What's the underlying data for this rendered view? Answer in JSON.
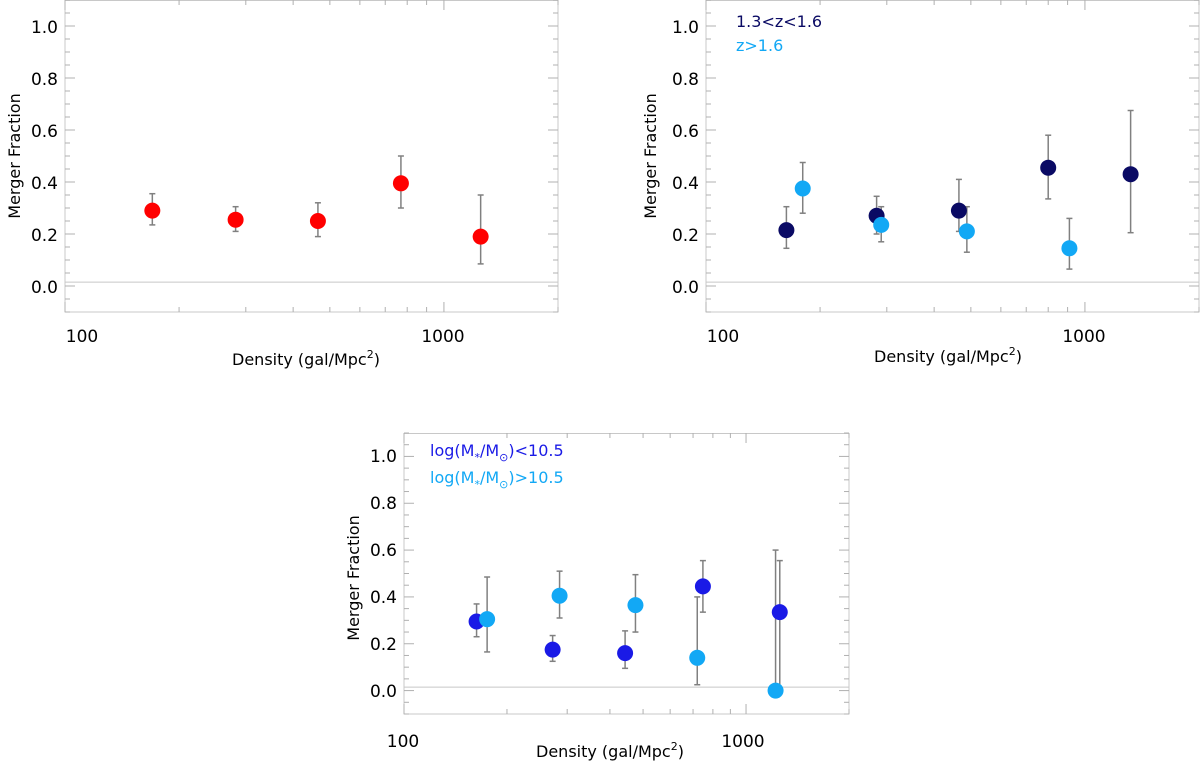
{
  "chart_data": [
    {
      "type": "scatter",
      "xscale": "log",
      "xlim": [
        100,
        2000
      ],
      "ylim": [
        -0.1,
        1.1
      ],
      "xticks": [
        "100",
        "1000"
      ],
      "yticks": [
        "0.0",
        "0.2",
        "0.4",
        "0.6",
        "0.8",
        "1.0"
      ],
      "xlabel": "Density (gal/Mpc",
      "xlabel_sup": "2",
      "xlabel_close": ")",
      "ylabel": "Merger Fraction",
      "reference_line": 0.015,
      "legend": [],
      "series": [
        {
          "name": "all",
          "color": "#ff0000",
          "points": [
            {
              "x": 170,
              "y": 0.29,
              "lo": 0.235,
              "hi": 0.355
            },
            {
              "x": 282,
              "y": 0.255,
              "lo": 0.21,
              "hi": 0.305
            },
            {
              "x": 465,
              "y": 0.25,
              "lo": 0.19,
              "hi": 0.32
            },
            {
              "x": 770,
              "y": 0.395,
              "lo": 0.3,
              "hi": 0.5
            },
            {
              "x": 1250,
              "y": 0.19,
              "lo": 0.085,
              "hi": 0.35
            }
          ]
        }
      ]
    },
    {
      "type": "scatter",
      "xscale": "log",
      "xlim": [
        100,
        2000
      ],
      "ylim": [
        -0.1,
        1.1
      ],
      "xticks": [
        "100",
        "1000"
      ],
      "yticks": [
        "0.0",
        "0.2",
        "0.4",
        "0.6",
        "0.8",
        "1.0"
      ],
      "xlabel": "Density (gal/Mpc",
      "xlabel_sup": "2",
      "xlabel_close": ")",
      "ylabel": "Merger Fraction",
      "reference_line": 0.015,
      "legend": [
        {
          "text": "1.3<z<1.6",
          "color": "#0a0a64"
        },
        {
          "text": "z>1.6",
          "color": "#12a8f5"
        }
      ],
      "series": [
        {
          "name": "1.3<z<1.6",
          "color": "#0a0a64",
          "points": [
            {
              "x": 163,
              "y": 0.215,
              "lo": 0.145,
              "hi": 0.305
            },
            {
              "x": 282,
              "y": 0.27,
              "lo": 0.2,
              "hi": 0.345
            },
            {
              "x": 465,
              "y": 0.29,
              "lo": 0.21,
              "hi": 0.41
            },
            {
              "x": 800,
              "y": 0.455,
              "lo": 0.335,
              "hi": 0.58
            },
            {
              "x": 1320,
              "y": 0.43,
              "lo": 0.205,
              "hi": 0.675
            }
          ]
        },
        {
          "name": "z>1.6",
          "color": "#12a8f5",
          "points": [
            {
              "x": 180,
              "y": 0.375,
              "lo": 0.28,
              "hi": 0.475
            },
            {
              "x": 290,
              "y": 0.235,
              "lo": 0.17,
              "hi": 0.305
            },
            {
              "x": 488,
              "y": 0.21,
              "lo": 0.13,
              "hi": 0.305
            },
            {
              "x": 910,
              "y": 0.145,
              "lo": 0.065,
              "hi": 0.26
            }
          ]
        }
      ]
    },
    {
      "type": "scatter",
      "xscale": "log",
      "xlim": [
        100,
        2000
      ],
      "ylim": [
        -0.1,
        1.1
      ],
      "xticks": [
        "100",
        "1000"
      ],
      "yticks": [
        "0.0",
        "0.2",
        "0.4",
        "0.6",
        "0.8",
        "1.0"
      ],
      "xlabel": "Density (gal/Mpc",
      "xlabel_sup": "2",
      "xlabel_close": ")",
      "ylabel": "Merger Fraction",
      "reference_line": 0.015,
      "legend": [
        {
          "pre": "log(M",
          "sub1": "*",
          "mid": "/M",
          "sub2": "⊙",
          "post": ")<10.5",
          "color": "#1a1ae6"
        },
        {
          "pre": "log(M",
          "sub1": "*",
          "mid": "/M",
          "sub2": "⊙",
          "post": ")>10.5",
          "color": "#12a8f5"
        }
      ],
      "series": [
        {
          "name": "log(M*/M⊙)<10.5",
          "color": "#1a1ae6",
          "points": [
            {
              "x": 163,
              "y": 0.295,
              "lo": 0.23,
              "hi": 0.37
            },
            {
              "x": 272,
              "y": 0.175,
              "lo": 0.125,
              "hi": 0.235
            },
            {
              "x": 443,
              "y": 0.16,
              "lo": 0.095,
              "hi": 0.255
            },
            {
              "x": 748,
              "y": 0.445,
              "lo": 0.335,
              "hi": 0.555
            },
            {
              "x": 1255,
              "y": 0.335,
              "lo": 0.0,
              "hi": 0.555
            }
          ]
        },
        {
          "name": "log(M*/M⊙)>10.5",
          "color": "#12a8f5",
          "points": [
            {
              "x": 175,
              "y": 0.305,
              "lo": 0.165,
              "hi": 0.485
            },
            {
              "x": 285,
              "y": 0.405,
              "lo": 0.31,
              "hi": 0.51
            },
            {
              "x": 475,
              "y": 0.365,
              "lo": 0.25,
              "hi": 0.495
            },
            {
              "x": 720,
              "y": 0.14,
              "lo": 0.025,
              "hi": 0.4
            },
            {
              "x": 1220,
              "y": 0.0,
              "lo": 0.0,
              "hi": 0.6
            }
          ]
        }
      ]
    }
  ]
}
